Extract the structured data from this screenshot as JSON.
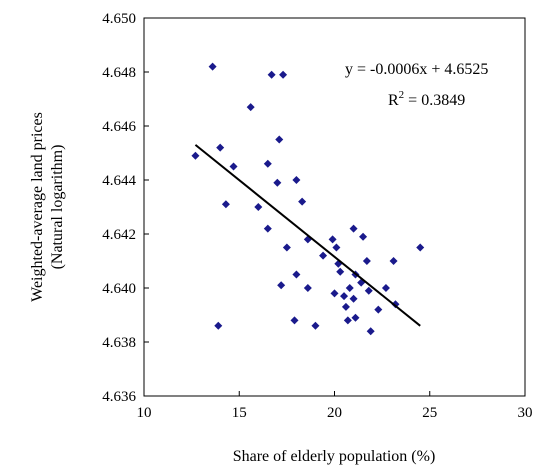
{
  "chart_data": {
    "type": "scatter",
    "title": "",
    "xlabel": "Share of elderly population (%)",
    "ylabel_line1": "Weighted-average land prices",
    "ylabel_line2": "(Natural logarithm)",
    "xlim": [
      10,
      30
    ],
    "ylim": [
      4.636,
      4.65
    ],
    "xticks": [
      "10",
      "15",
      "20",
      "25",
      "30"
    ],
    "yticks": [
      "4.636",
      "4.638",
      "4.640",
      "4.642",
      "4.644",
      "4.646",
      "4.648",
      "4.650"
    ],
    "grid": false,
    "legend": "none",
    "marker_color": "#1a1a8c",
    "points": [
      [
        12.7,
        4.6449
      ],
      [
        13.6,
        4.6482
      ],
      [
        13.9,
        4.6386
      ],
      [
        14.0,
        4.6452
      ],
      [
        14.3,
        4.6431
      ],
      [
        14.7,
        4.6445
      ],
      [
        15.6,
        4.6467
      ],
      [
        16.0,
        4.643
      ],
      [
        16.5,
        4.6446
      ],
      [
        16.5,
        4.6422
      ],
      [
        16.7,
        4.6479
      ],
      [
        17.0,
        4.6439
      ],
      [
        17.1,
        4.6455
      ],
      [
        17.2,
        4.6401
      ],
      [
        17.3,
        4.6479
      ],
      [
        17.5,
        4.6415
      ],
      [
        17.9,
        4.6388
      ],
      [
        18.0,
        4.6405
      ],
      [
        18.0,
        4.644
      ],
      [
        18.3,
        4.6432
      ],
      [
        18.6,
        4.6418
      ],
      [
        18.6,
        4.64
      ],
      [
        19.0,
        4.6386
      ],
      [
        19.4,
        4.6412
      ],
      [
        19.9,
        4.6418
      ],
      [
        20.0,
        4.6398
      ],
      [
        20.1,
        4.6415
      ],
      [
        20.2,
        4.6409
      ],
      [
        20.3,
        4.6406
      ],
      [
        20.5,
        4.6397
      ],
      [
        20.6,
        4.6393
      ],
      [
        20.7,
        4.6388
      ],
      [
        20.8,
        4.64
      ],
      [
        21.0,
        4.6422
      ],
      [
        21.0,
        4.6396
      ],
      [
        21.1,
        4.6405
      ],
      [
        21.1,
        4.6389
      ],
      [
        21.4,
        4.6402
      ],
      [
        21.5,
        4.6419
      ],
      [
        21.7,
        4.641
      ],
      [
        21.8,
        4.6399
      ],
      [
        21.9,
        4.6384
      ],
      [
        22.3,
        4.6392
      ],
      [
        22.7,
        4.64
      ],
      [
        23.1,
        4.641
      ],
      [
        23.2,
        4.6394
      ],
      [
        24.5,
        4.6415
      ]
    ],
    "trendline": {
      "x_start": 12.7,
      "y_start": 4.6453,
      "x_end": 24.5,
      "y_end": 4.6386
    },
    "equation": "y = -0.0006x + 4.6525",
    "r2_prefix": "R",
    "r2_exponent": "2",
    "r2_value": " = 0.3849"
  }
}
